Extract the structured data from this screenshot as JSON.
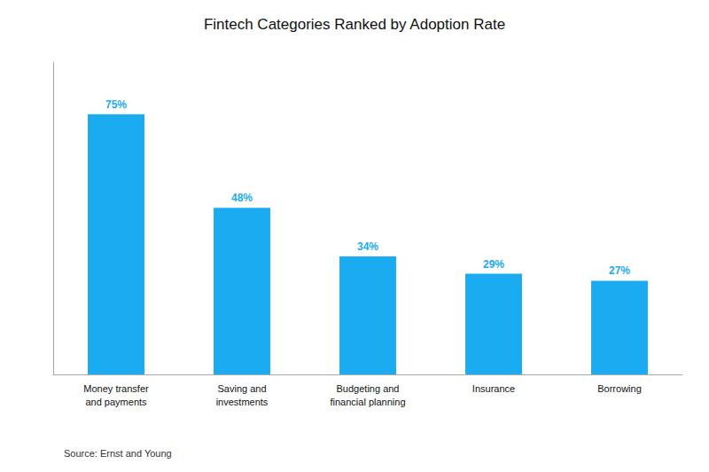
{
  "chart_data": {
    "type": "bar",
    "title": "Fintech Categories Ranked by Adoption Rate",
    "categories": [
      "Money transfer\nand payments",
      "Saving and\ninvestments",
      "Budgeting and\nfinancial planning",
      "Insurance",
      "Borrowing"
    ],
    "values": [
      75,
      48,
      34,
      29,
      27
    ],
    "value_labels": [
      "75%",
      "48%",
      "34%",
      "29%",
      "27%"
    ],
    "color": "#1AABF0",
    "ylim": [
      0,
      90
    ],
    "data_labels": true,
    "grid": false,
    "tick_labels": "x",
    "annotation": "Source: Ernst and Young"
  }
}
